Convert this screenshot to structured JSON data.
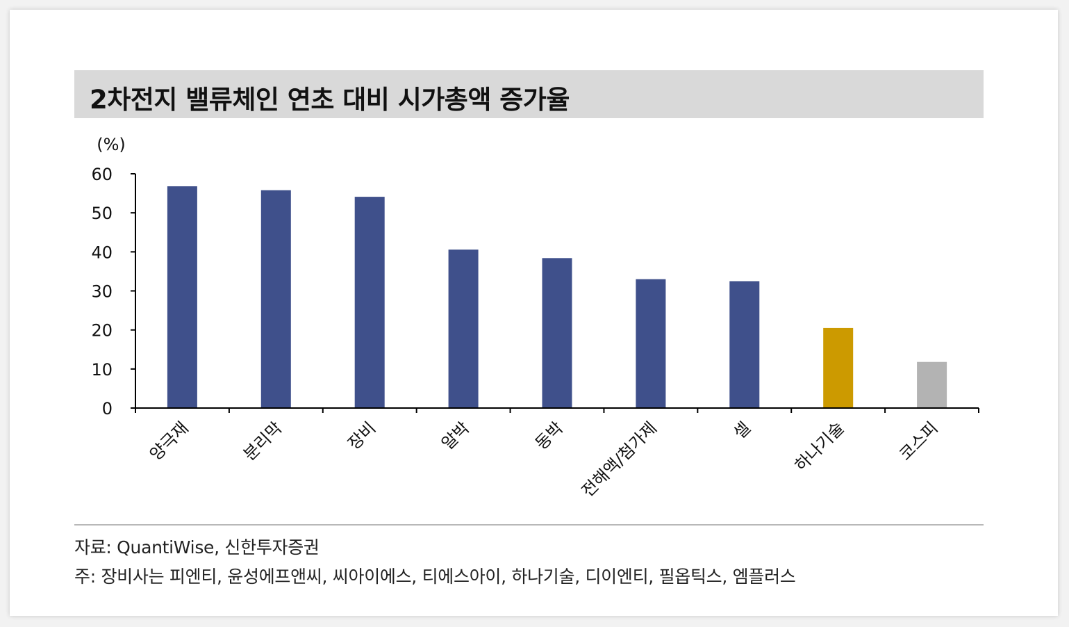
{
  "title": "2차전지 밸류체인 연초 대비 시가총액 증가율",
  "chart_data": {
    "type": "bar",
    "categories": [
      "양극재",
      "분리막",
      "장비",
      "알박",
      "동박",
      "전해액/첨가제",
      "셀",
      "하나기술",
      "코스피"
    ],
    "values": [
      56.8,
      55.8,
      54.1,
      40.6,
      38.4,
      33.0,
      32.5,
      20.5,
      11.8
    ],
    "bar_colors": [
      "#3f508b",
      "#3f508b",
      "#3f508b",
      "#3f508b",
      "#3f508b",
      "#3f508b",
      "#3f508b",
      "#cc9a00",
      "#b3b3b3"
    ],
    "y_unit": "(%)",
    "ylim": [
      0,
      60
    ],
    "yticks": [
      "0",
      "10",
      "20",
      "30",
      "40",
      "50",
      "60"
    ],
    "grid": false,
    "legend": "none"
  },
  "source": "자료: QuantiWise, 신한투자증권",
  "note": "주: 장비사는 피엔티, 윤성에프앤씨, 씨아이에스, 티에스아이, 하나기술, 디이엔티, 필옵틱스, 엠플러스"
}
